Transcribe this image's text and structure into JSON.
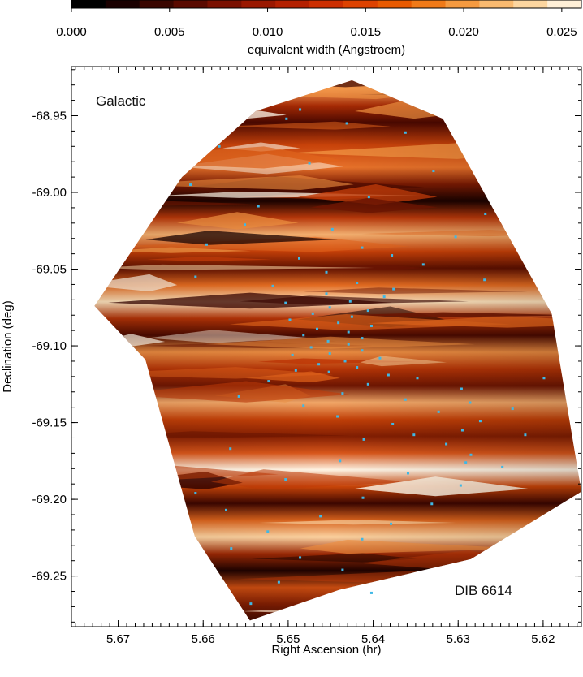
{
  "chart_data": {
    "type": "heatmap",
    "colorbar": {
      "label": "equivalent width (Angstroem)",
      "range": [
        0.0,
        0.026
      ],
      "ticks": [
        "0.000",
        "0.005",
        "0.010",
        "0.015",
        "0.020",
        "0.025"
      ],
      "tick_values": [
        0.0,
        0.005,
        0.01,
        0.015,
        0.02,
        0.025
      ],
      "colors": [
        "#000000",
        "#1a0000",
        "#3a0600",
        "#5a0a00",
        "#7a1000",
        "#9a1800",
        "#b42000",
        "#cc2e00",
        "#dd4200",
        "#e85a00",
        "#f07a18",
        "#f59a40",
        "#f9ba70",
        "#fcd6a0",
        "#fff0d8"
      ]
    },
    "xlabel": "Right Ascension (hr)",
    "ylabel": "Declination (deg)",
    "x_ticks": [
      "5.67",
      "5.66",
      "5.65",
      "5.64",
      "5.63",
      "5.62"
    ],
    "x_tick_values": [
      5.67,
      5.66,
      5.65,
      5.64,
      5.63,
      5.62
    ],
    "y_ticks": [
      "-68.95",
      "-69.00",
      "-69.05",
      "-69.10",
      "-69.15",
      "-69.20",
      "-69.25"
    ],
    "y_tick_values": [
      -68.95,
      -69.0,
      -69.05,
      -69.1,
      -69.15,
      -69.2,
      -69.25
    ],
    "xlim": [
      5.6755,
      5.6155
    ],
    "ylim": [
      -69.283,
      -68.918
    ],
    "annotation_top_left": "Galactic",
    "annotation_bottom_right": "DIB 6614",
    "hull": [
      [
        5.6425,
        -68.927
      ],
      [
        5.6318,
        -68.952
      ],
      [
        5.619,
        -69.079
      ],
      [
        5.6155,
        -69.195
      ],
      [
        5.6285,
        -69.239
      ],
      [
        5.644,
        -69.259
      ],
      [
        5.6545,
        -69.279
      ],
      [
        5.661,
        -69.224
      ],
      [
        5.6668,
        -69.109
      ],
      [
        5.6728,
        -69.074
      ],
      [
        5.6625,
        -68.99
      ],
      [
        5.6538,
        -68.947
      ]
    ],
    "stars": [
      [
        5.6486,
        -68.946
      ],
      [
        5.6502,
        -68.952
      ],
      [
        5.6431,
        -68.955
      ],
      [
        5.6362,
        -68.961
      ],
      [
        5.6581,
        -68.97
      ],
      [
        5.6475,
        -68.981
      ],
      [
        5.6329,
        -68.986
      ],
      [
        5.6615,
        -68.995
      ],
      [
        5.6405,
        -69.003
      ],
      [
        5.6535,
        -69.009
      ],
      [
        5.6268,
        -69.014
      ],
      [
        5.6551,
        -69.021
      ],
      [
        5.6448,
        -69.024
      ],
      [
        5.6303,
        -69.029
      ],
      [
        5.6596,
        -69.034
      ],
      [
        5.6413,
        -69.036
      ],
      [
        5.6378,
        -69.041
      ],
      [
        5.6487,
        -69.043
      ],
      [
        5.6341,
        -69.047
      ],
      [
        5.6455,
        -69.052
      ],
      [
        5.6609,
        -69.055
      ],
      [
        5.6269,
        -69.057
      ],
      [
        5.6419,
        -69.059
      ],
      [
        5.6518,
        -69.061
      ],
      [
        5.6376,
        -69.063
      ],
      [
        5.6455,
        -69.066
      ],
      [
        5.6387,
        -69.068
      ],
      [
        5.6427,
        -69.071
      ],
      [
        5.6503,
        -69.072
      ],
      [
        5.6451,
        -69.075
      ],
      [
        5.6406,
        -69.077
      ],
      [
        5.6471,
        -69.079
      ],
      [
        5.6425,
        -69.081
      ],
      [
        5.6498,
        -69.083
      ],
      [
        5.6441,
        -69.085
      ],
      [
        5.6402,
        -69.087
      ],
      [
        5.6466,
        -69.089
      ],
      [
        5.6429,
        -69.091
      ],
      [
        5.6482,
        -69.093
      ],
      [
        5.6413,
        -69.095
      ],
      [
        5.6453,
        -69.097
      ],
      [
        5.6429,
        -69.099
      ],
      [
        5.6473,
        -69.101
      ],
      [
        5.6413,
        -69.103
      ],
      [
        5.6451,
        -69.105
      ],
      [
        5.6495,
        -69.106
      ],
      [
        5.6392,
        -69.108
      ],
      [
        5.6433,
        -69.11
      ],
      [
        5.6464,
        -69.112
      ],
      [
        5.6419,
        -69.114
      ],
      [
        5.6491,
        -69.116
      ],
      [
        5.6452,
        -69.117
      ],
      [
        5.6382,
        -69.119
      ],
      [
        5.6348,
        -69.121
      ],
      [
        5.6523,
        -69.123
      ],
      [
        5.6406,
        -69.125
      ],
      [
        5.6296,
        -69.128
      ],
      [
        5.6436,
        -69.131
      ],
      [
        5.6558,
        -69.133
      ],
      [
        5.6362,
        -69.135
      ],
      [
        5.6286,
        -69.137
      ],
      [
        5.6482,
        -69.139
      ],
      [
        5.6236,
        -69.141
      ],
      [
        5.6323,
        -69.143
      ],
      [
        5.6442,
        -69.146
      ],
      [
        5.6274,
        -69.149
      ],
      [
        5.6377,
        -69.151
      ],
      [
        5.6295,
        -69.155
      ],
      [
        5.6221,
        -69.158
      ],
      [
        5.6411,
        -69.161
      ],
      [
        5.6314,
        -69.164
      ],
      [
        5.6568,
        -69.167
      ],
      [
        5.6285,
        -69.171
      ],
      [
        5.6439,
        -69.175
      ],
      [
        5.6248,
        -69.179
      ],
      [
        5.6359,
        -69.183
      ],
      [
        5.6503,
        -69.187
      ],
      [
        5.6297,
        -69.191
      ],
      [
        5.6609,
        -69.196
      ],
      [
        5.6412,
        -69.199
      ],
      [
        5.6331,
        -69.203
      ],
      [
        5.6573,
        -69.207
      ],
      [
        5.6462,
        -69.211
      ],
      [
        5.6379,
        -69.216
      ],
      [
        5.6524,
        -69.221
      ],
      [
        5.6413,
        -69.226
      ],
      [
        5.6567,
        -69.232
      ],
      [
        5.6486,
        -69.238
      ],
      [
        5.6436,
        -69.246
      ],
      [
        5.6511,
        -69.254
      ],
      [
        5.6402,
        -69.261
      ],
      [
        5.6544,
        -69.268
      ],
      [
        5.6291,
        -69.176
      ],
      [
        5.6352,
        -69.158
      ],
      [
        5.6199,
        -69.121
      ]
    ]
  }
}
